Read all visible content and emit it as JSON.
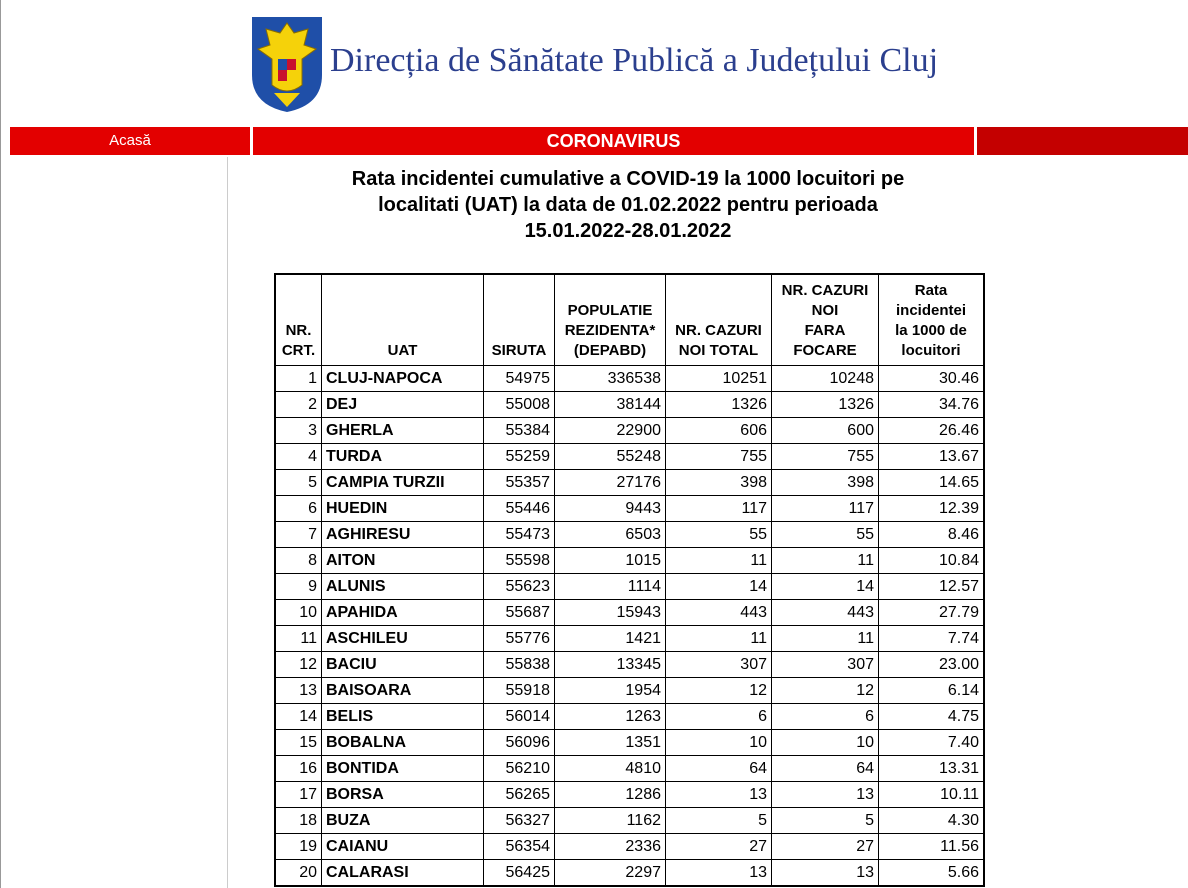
{
  "header": {
    "title": "Direcția de Sănătate Publică a Județului Cluj"
  },
  "nav": {
    "home": "Acasă",
    "section": "CORONAVIRUS"
  },
  "content": {
    "heading": [
      "Rata incidentei cumulative a COVID-19 la 1000 locuitori pe",
      "localitati (UAT) la data de 01.02.2022 pentru perioada",
      "15.01.2022-28.01.2022"
    ]
  },
  "table": {
    "columns": [
      [
        "NR.",
        "CRT."
      ],
      [
        "UAT"
      ],
      [
        "SIRUTA"
      ],
      [
        "POPULATIE",
        "REZIDENTA*",
        "(DEPABD)"
      ],
      [
        "NR. CAZURI",
        "NOI TOTAL"
      ],
      [
        "NR. CAZURI",
        "NOI",
        "FARA",
        "FOCARE"
      ],
      [
        "Rata",
        "incidentei",
        "la 1000 de",
        "locuitori"
      ]
    ],
    "rows": [
      [
        "1",
        "CLUJ-NAPOCA",
        "54975",
        "336538",
        "10251",
        "10248",
        "30.46"
      ],
      [
        "2",
        "DEJ",
        "55008",
        "38144",
        "1326",
        "1326",
        "34.76"
      ],
      [
        "3",
        "GHERLA",
        "55384",
        "22900",
        "606",
        "600",
        "26.46"
      ],
      [
        "4",
        "TURDA",
        "55259",
        "55248",
        "755",
        "755",
        "13.67"
      ],
      [
        "5",
        "CAMPIA TURZII",
        "55357",
        "27176",
        "398",
        "398",
        "14.65"
      ],
      [
        "6",
        "HUEDIN",
        "55446",
        "9443",
        "117",
        "117",
        "12.39"
      ],
      [
        "7",
        "AGHIRESU",
        "55473",
        "6503",
        "55",
        "55",
        "8.46"
      ],
      [
        "8",
        "AITON",
        "55598",
        "1015",
        "11",
        "11",
        "10.84"
      ],
      [
        "9",
        "ALUNIS",
        "55623",
        "1114",
        "14",
        "14",
        "12.57"
      ],
      [
        "10",
        "APAHIDA",
        "55687",
        "15943",
        "443",
        "443",
        "27.79"
      ],
      [
        "11",
        "ASCHILEU",
        "55776",
        "1421",
        "11",
        "11",
        "7.74"
      ],
      [
        "12",
        "BACIU",
        "55838",
        "13345",
        "307",
        "307",
        "23.00"
      ],
      [
        "13",
        "BAISOARA",
        "55918",
        "1954",
        "12",
        "12",
        "6.14"
      ],
      [
        "14",
        "BELIS",
        "56014",
        "1263",
        "6",
        "6",
        "4.75"
      ],
      [
        "15",
        "BOBALNA",
        "56096",
        "1351",
        "10",
        "10",
        "7.40"
      ],
      [
        "16",
        "BONTIDA",
        "56210",
        "4810",
        "64",
        "64",
        "13.31"
      ],
      [
        "17",
        "BORSA",
        "56265",
        "1286",
        "13",
        "13",
        "10.11"
      ],
      [
        "18",
        "BUZA",
        "56327",
        "1162",
        "5",
        "5",
        "4.30"
      ],
      [
        "19",
        "CAIANU",
        "56354",
        "2336",
        "27",
        "27",
        "11.56"
      ],
      [
        "20",
        "CALARASI",
        "56425",
        "2297",
        "13",
        "13",
        "5.66"
      ]
    ]
  }
}
